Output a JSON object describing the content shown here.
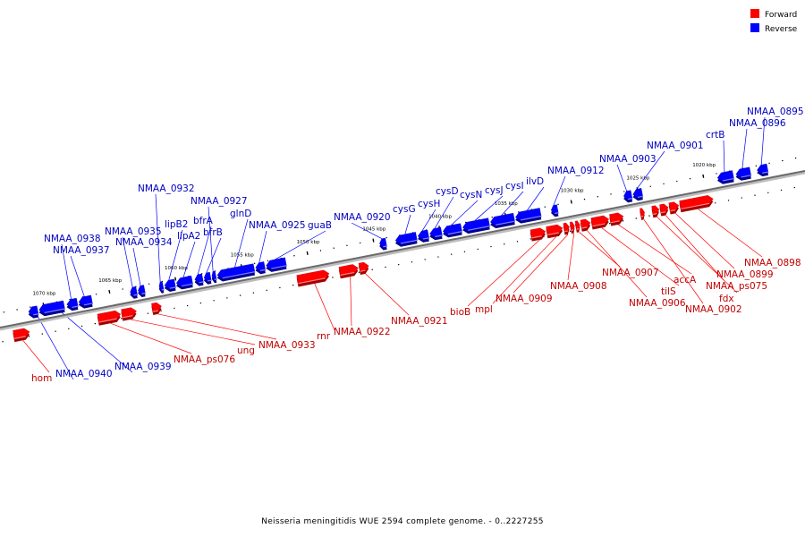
{
  "caption": "Neisseria meningitidis WUE 2594 complete genome. - 0..2227255",
  "legend": [
    {
      "label": "Forward",
      "color": "#ff0000"
    },
    {
      "label": "Reverse",
      "color": "#0000ff"
    }
  ],
  "ticks": [
    {
      "label": "1020 kbp",
      "kbp": 1020
    },
    {
      "label": "1025 kbp",
      "kbp": 1025
    },
    {
      "label": "1030 kbp",
      "kbp": 1030
    },
    {
      "label": "1035 kbp",
      "kbp": 1035
    },
    {
      "label": "1040 kbp",
      "kbp": 1040
    },
    {
      "label": "1045 kbp",
      "kbp": 1045
    },
    {
      "label": "1050 kbp",
      "kbp": 1050
    },
    {
      "label": "1055 kbp",
      "kbp": 1055
    },
    {
      "label": "1060 kbp",
      "kbp": 1060
    },
    {
      "label": "1065 kbp",
      "kbp": 1065
    },
    {
      "label": "1070 kbp",
      "kbp": 1070
    }
  ],
  "genes": [
    {
      "name": "NMAA_0895",
      "strand": "reverse",
      "start_kbp": 1015.2,
      "end_kbp": 1016.0
    },
    {
      "name": "NMAA_0896",
      "strand": "reverse",
      "start_kbp": 1016.5,
      "end_kbp": 1017.6
    },
    {
      "name": "crtB",
      "strand": "reverse",
      "start_kbp": 1017.8,
      "end_kbp": 1019.0
    },
    {
      "name": "NMAA_0898",
      "strand": "forward",
      "start_kbp": 1019.6,
      "end_kbp": 1022.1
    },
    {
      "name": "NMAA_0899",
      "strand": "forward",
      "start_kbp": 1022.2,
      "end_kbp": 1022.9
    },
    {
      "name": "NMAA_ps075",
      "strand": "forward",
      "start_kbp": 1023.0,
      "end_kbp": 1023.6
    },
    {
      "name": "fdx",
      "strand": "forward",
      "start_kbp": 1023.7,
      "end_kbp": 1024.2
    },
    {
      "name": "NMAA_0901",
      "strand": "reverse",
      "start_kbp": 1024.7,
      "end_kbp": 1025.4
    },
    {
      "name": "NMAA_0902",
      "strand": "forward",
      "start_kbp": 1024.8,
      "end_kbp": 1025.1
    },
    {
      "name": "NMAA_0903",
      "strand": "reverse",
      "start_kbp": 1025.5,
      "end_kbp": 1026.1
    },
    {
      "name": "accA",
      "strand": "forward",
      "start_kbp": 1026.4,
      "end_kbp": 1027.4
    },
    {
      "name": "tilS",
      "strand": "forward",
      "start_kbp": 1027.5,
      "end_kbp": 1028.8
    },
    {
      "name": "NMAA_0906",
      "strand": "forward",
      "start_kbp": 1028.9,
      "end_kbp": 1029.6
    },
    {
      "name": "NMAA_0907",
      "strand": "forward",
      "start_kbp": 1029.7,
      "end_kbp": 1030.0
    },
    {
      "name": "NMAA_0908",
      "strand": "forward",
      "start_kbp": 1030.1,
      "end_kbp": 1030.4
    },
    {
      "name": "NMAA_0909",
      "strand": "forward",
      "start_kbp": 1030.5,
      "end_kbp": 1030.9
    },
    {
      "name": "mpl",
      "strand": "forward",
      "start_kbp": 1031.0,
      "end_kbp": 1032.2
    },
    {
      "name": "bioB",
      "strand": "forward",
      "start_kbp": 1032.3,
      "end_kbp": 1033.4
    },
    {
      "name": "NMAA_0912",
      "strand": "reverse",
      "start_kbp": 1031.1,
      "end_kbp": 1031.6
    },
    {
      "name": "ilvD",
      "strand": "reverse",
      "start_kbp": 1032.4,
      "end_kbp": 1034.3
    },
    {
      "name": "cysI",
      "strand": "reverse",
      "start_kbp": 1034.4,
      "end_kbp": 1036.2
    },
    {
      "name": "cysJ",
      "strand": "reverse",
      "start_kbp": 1036.3,
      "end_kbp": 1038.3
    },
    {
      "name": "cysN",
      "strand": "reverse",
      "start_kbp": 1038.4,
      "end_kbp": 1039.8
    },
    {
      "name": "cysD",
      "strand": "reverse",
      "start_kbp": 1039.9,
      "end_kbp": 1040.8
    },
    {
      "name": "cysH",
      "strand": "reverse",
      "start_kbp": 1040.9,
      "end_kbp": 1041.7
    },
    {
      "name": "cysG",
      "strand": "reverse",
      "start_kbp": 1041.8,
      "end_kbp": 1043.4
    },
    {
      "name": "NMAA_0920",
      "strand": "reverse",
      "start_kbp": 1044.1,
      "end_kbp": 1044.6
    },
    {
      "name": "NMAA_0921",
      "strand": "forward",
      "start_kbp": 1045.7,
      "end_kbp": 1046.4
    },
    {
      "name": "NMAA_0922",
      "strand": "forward",
      "start_kbp": 1046.5,
      "end_kbp": 1047.9
    },
    {
      "name": "rnr",
      "strand": "forward",
      "start_kbp": 1048.7,
      "end_kbp": 1051.1
    },
    {
      "name": "guaB",
      "strand": "reverse",
      "start_kbp": 1051.7,
      "end_kbp": 1053.2
    },
    {
      "name": "NMAA_0925",
      "strand": "reverse",
      "start_kbp": 1053.3,
      "end_kbp": 1054.0
    },
    {
      "name": "glnD",
      "strand": "reverse",
      "start_kbp": 1054.1,
      "end_kbp": 1056.9
    },
    {
      "name": "NMAA_0927",
      "strand": "reverse",
      "start_kbp": 1057.0,
      "end_kbp": 1057.3
    },
    {
      "name": "bfrB",
      "strand": "reverse",
      "start_kbp": 1057.4,
      "end_kbp": 1057.9
    },
    {
      "name": "bfrA",
      "strand": "reverse",
      "start_kbp": 1058.0,
      "end_kbp": 1058.6
    },
    {
      "name": "lipA2",
      "strand": "reverse",
      "start_kbp": 1058.8,
      "end_kbp": 1060.0
    },
    {
      "name": "lipB2",
      "strand": "reverse",
      "start_kbp": 1060.1,
      "end_kbp": 1060.9
    },
    {
      "name": "NMAA_0932",
      "strand": "reverse",
      "start_kbp": 1061.0,
      "end_kbp": 1061.3
    },
    {
      "name": "NMAA_0933",
      "strand": "forward",
      "start_kbp": 1061.4,
      "end_kbp": 1062.1
    },
    {
      "name": "NMAA_0934",
      "strand": "reverse",
      "start_kbp": 1062.4,
      "end_kbp": 1062.9
    },
    {
      "name": "ung",
      "strand": "forward",
      "start_kbp": 1063.3,
      "end_kbp": 1064.4
    },
    {
      "name": "NMAA_0935",
      "strand": "reverse",
      "start_kbp": 1063.0,
      "end_kbp": 1063.5
    },
    {
      "name": "NMAA_ps076",
      "strand": "forward",
      "start_kbp": 1064.5,
      "end_kbp": 1066.2
    },
    {
      "name": "NMAA_0937",
      "strand": "reverse",
      "start_kbp": 1066.4,
      "end_kbp": 1067.4
    },
    {
      "name": "NMAA_0938",
      "strand": "reverse",
      "start_kbp": 1067.5,
      "end_kbp": 1068.3
    },
    {
      "name": "NMAA_0939",
      "strand": "reverse",
      "start_kbp": 1068.5,
      "end_kbp": 1070.4
    },
    {
      "name": "NMAA_0940",
      "strand": "reverse",
      "start_kbp": 1070.5,
      "end_kbp": 1071.2
    },
    {
      "name": "hom",
      "strand": "forward",
      "start_kbp": 1071.4,
      "end_kbp": 1072.6
    }
  ]
}
